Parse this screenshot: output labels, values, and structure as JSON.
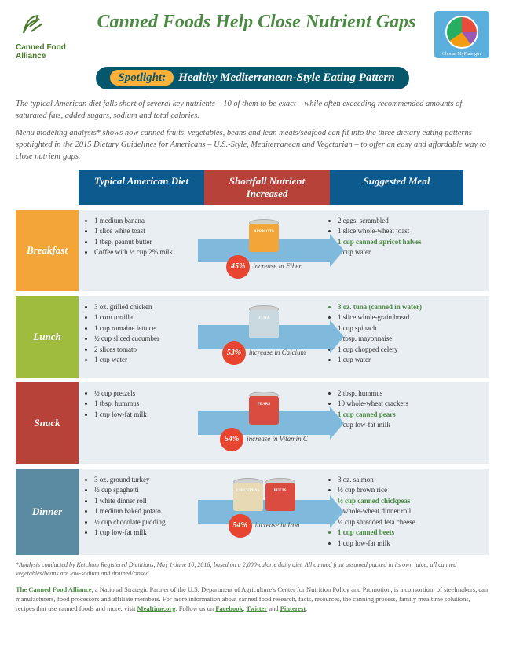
{
  "colors": {
    "green": "#4a8a42",
    "navy": "#06566c",
    "yellow": "#fcb13b",
    "blue_head": "#0d5a8e",
    "red_head": "#b7423a",
    "rowbg": "#e8eef2",
    "arrow": "#7fb9dc",
    "pct": "#e7452f",
    "breakfast": "#f3a637",
    "lunch": "#a0bc3f",
    "snack": "#b7423a",
    "dinner": "#5a8ba3"
  },
  "header": {
    "logo_text": "Canned Food Alliance",
    "title": "Canned Foods Help Close Nutrient Gaps",
    "myplate_label": "Choose MyPlate gov"
  },
  "spotlight": {
    "badge": "Spotlight:",
    "text": "Healthy Mediterranean-Style Eating Pattern"
  },
  "intro1": "The typical American diet falls short of several key nutrients – 10 of them to be exact – while often exceeding recommended amounts of saturated fats, added sugars, sodium and total calories.",
  "intro2": "Menu modeling analysis* shows how canned fruits, vegetables, beans and lean meats/seafood can fit into the three dietary eating patterns spotlighted in the 2015 Dietary Guidelines for Americans – U.S.-Style, Mediterranean and Vegetarian – to offer an easy and affordable way to close nutrient gaps.",
  "cols": {
    "c1": "Typical American Diet",
    "c2": "Shortfall Nutrient Increased",
    "c3": "Suggested Meal"
  },
  "meals": [
    {
      "id": "breakfast",
      "label": "Breakfast",
      "label_color": "#f3a637",
      "can_color": "#f3a637",
      "can_text": "APRICOTS",
      "pct": "45%",
      "pct_text": "increase in Fiber",
      "typical": [
        "1 medium banana",
        "1 slice white toast",
        "1 tbsp. peanut butter",
        "Coffee with ½ cup 2% milk"
      ],
      "suggested": [
        {
          "t": "2 eggs, scrambled"
        },
        {
          "t": "1 slice whole-wheat toast"
        },
        {
          "t": "1 cup canned apricot halves",
          "h": true
        },
        {
          "t": "1 cup water"
        }
      ]
    },
    {
      "id": "lunch",
      "label": "Lunch",
      "label_color": "#a0bc3f",
      "can_color": "#c9d9df",
      "can_text": "TUNA",
      "pct": "53%",
      "pct_text": "increase in Calcium",
      "typical": [
        "3 oz. grilled chicken",
        "1 corn tortilla",
        "1 cup romaine lettuce",
        "½ cup sliced cucumber",
        "2 slices tomato",
        "1 cup water"
      ],
      "suggested": [
        {
          "t": "3 oz. tuna (canned in water)",
          "h": true
        },
        {
          "t": "1 slice whole-grain bread"
        },
        {
          "t": "1 cup spinach"
        },
        {
          "t": "2 tbsp. mayonnaise"
        },
        {
          "t": "1 cup chopped celery"
        },
        {
          "t": "1 cup water"
        }
      ]
    },
    {
      "id": "snack",
      "label": "Snack",
      "label_color": "#b7423a",
      "can_color": "#d94c3f",
      "can_text": "PEARS",
      "pct": "54%",
      "pct_text": "increase in Vitamin C",
      "typical": [
        "½ cup pretzels",
        "1 tbsp. hummus",
        "1 cup low-fat milk"
      ],
      "suggested": [
        {
          "t": "2 tbsp. hummus"
        },
        {
          "t": "10 whole-wheat crackers"
        },
        {
          "t": "1 cup canned pears",
          "h": true
        },
        {
          "t": "1 cup low-fat milk"
        }
      ]
    },
    {
      "id": "dinner",
      "label": "Dinner",
      "label_color": "#5a8ba3",
      "can_color": "#d94c3f",
      "can_text": "BEETS",
      "can2_color": "#e8d9b5",
      "can2_text": "CHICKPEAS",
      "pct": "54%",
      "pct_text": "increase in Iron",
      "typical": [
        "3 oz. ground turkey",
        "½ cup spaghetti",
        "1 white dinner roll",
        "1 medium baked potato",
        "½ cup chocolate pudding",
        "1 cup low-fat milk"
      ],
      "suggested": [
        {
          "t": "3 oz. salmon"
        },
        {
          "t": "½ cup brown rice"
        },
        {
          "t": "½ cup canned chickpeas",
          "h": true
        },
        {
          "t": "1 whole-wheat dinner roll"
        },
        {
          "t": "¼ cup shredded feta cheese"
        },
        {
          "t": "1 cup canned beets",
          "h": true
        },
        {
          "t": "1 cup low-fat milk"
        }
      ]
    }
  ],
  "footnote": "*Analysis conducted by Ketchum Registered Dietitians, May 1-June 10, 2016; based on a 2,000-calorie daily diet. All canned fruit assumed packed in its own juice; all canned vegetables/beans are low-sodium and drained/rinsed.",
  "footer": {
    "title": "The Canned Food Alliance",
    "body": ", a National Strategic Partner of the U.S. Department of Agriculture's Center for Nutrition Policy and Promotion, is a consortium of steelmakers, can manufacturers, food processors and affiliate members. For more information about canned food research, facts, resources, the canning process, family mealtime solutions, recipes that use canned foods and more, visit ",
    "link1": "Mealtime.org",
    "follow": ". Follow us on ",
    "link2": "Facebook",
    "comma": ", ",
    "link3": "Twitter",
    "and": " and ",
    "link4": "Pinterest",
    "end": "."
  }
}
